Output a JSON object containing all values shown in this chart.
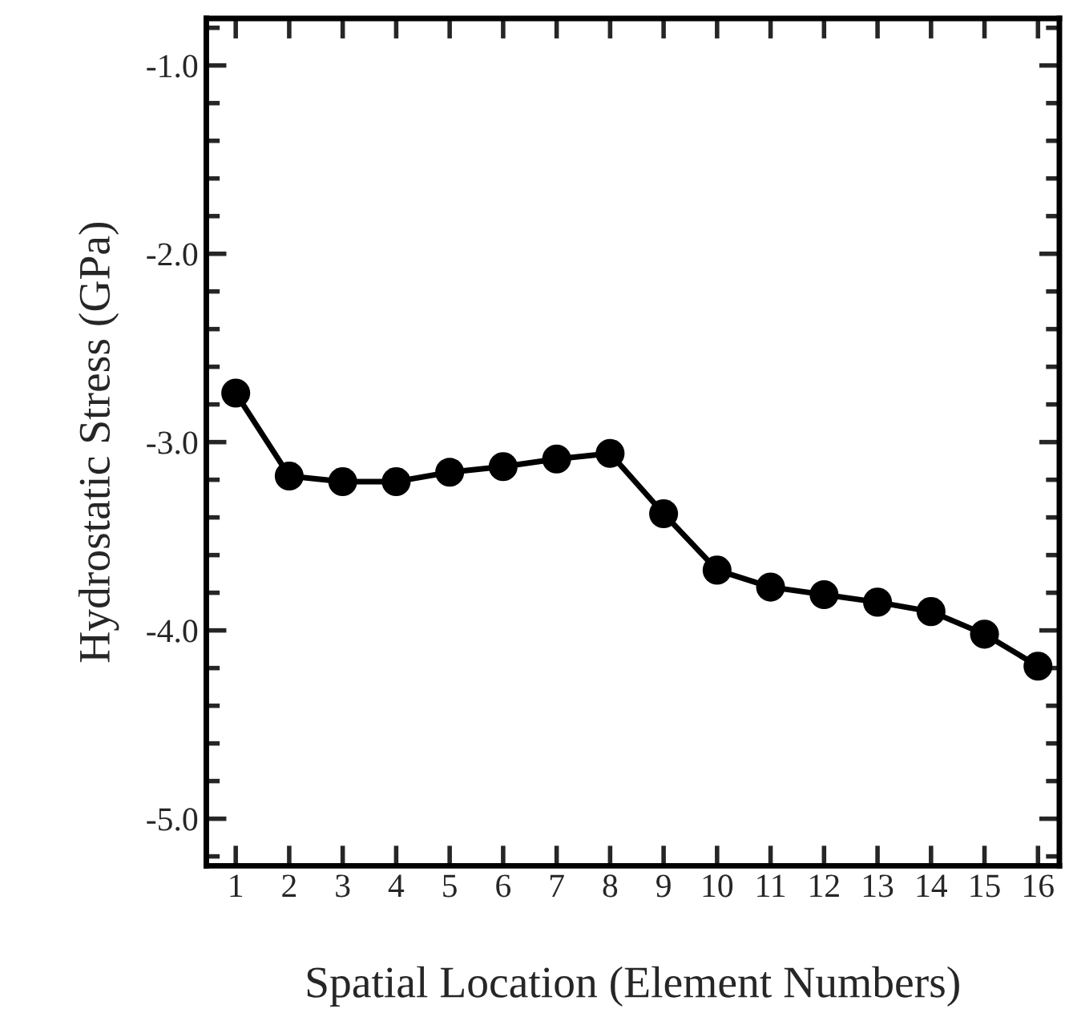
{
  "chart_data": {
    "type": "line",
    "xlabel": "Spatial Location (Element Numbers)",
    "ylabel": "Hydrostatic Stress (GPa)",
    "x": [
      1,
      2,
      3,
      4,
      5,
      6,
      7,
      8,
      9,
      10,
      11,
      12,
      13,
      14,
      15,
      16
    ],
    "series": [
      {
        "color": "#000000",
        "values": [
          -2.74,
          -3.18,
          -3.21,
          -3.21,
          -3.16,
          -3.13,
          -3.09,
          -3.06,
          -3.38,
          -3.68,
          -3.77,
          -3.81,
          -3.85,
          -3.9,
          -4.02,
          -4.19
        ]
      }
    ],
    "xlim": [
      0.45,
      16.4
    ],
    "xticks": [
      1,
      2,
      3,
      4,
      5,
      6,
      7,
      8,
      9,
      10,
      11,
      12,
      13,
      14,
      15,
      16
    ],
    "ylim": [
      -5.25,
      -0.75
    ],
    "yticks": [
      {
        "value": -5,
        "label": "-5.0"
      },
      {
        "value": -4,
        "label": "-4.0"
      },
      {
        "value": -3,
        "label": "-3.0"
      },
      {
        "value": -2,
        "label": "-2.0"
      },
      {
        "value": -1,
        "label": "-1.0"
      }
    ],
    "marker": "circle",
    "line_style": "solid",
    "grid": false,
    "legend": false
  }
}
